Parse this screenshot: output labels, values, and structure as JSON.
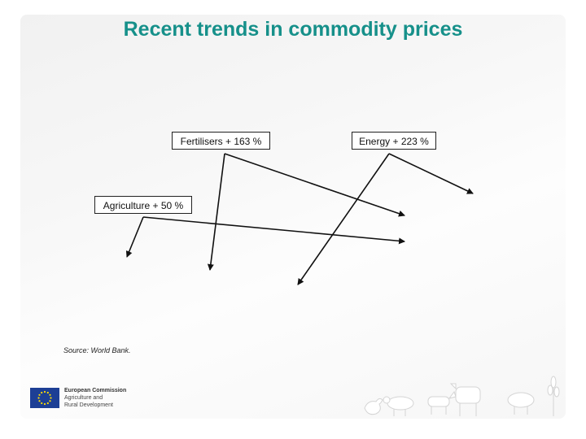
{
  "slide": {
    "title": "Recent trends in commodity prices",
    "labels": {
      "fertilisers": "Fertilisers + 163 %",
      "energy": "Energy + 223 %",
      "agriculture": "Agriculture + 50 %"
    },
    "source": "Source: World Bank."
  },
  "footer": {
    "organization": "European Commission",
    "department_line1": "Agriculture and",
    "department_line2": "Rural Development"
  },
  "colors": {
    "title": "#16908a",
    "eu_flag": "#1d3f95",
    "eu_stars": "#ffdd00",
    "arrows": "#111111"
  },
  "icons": {
    "logo": "eu-flag-icon",
    "footer_art": "farm-animals-icon"
  }
}
